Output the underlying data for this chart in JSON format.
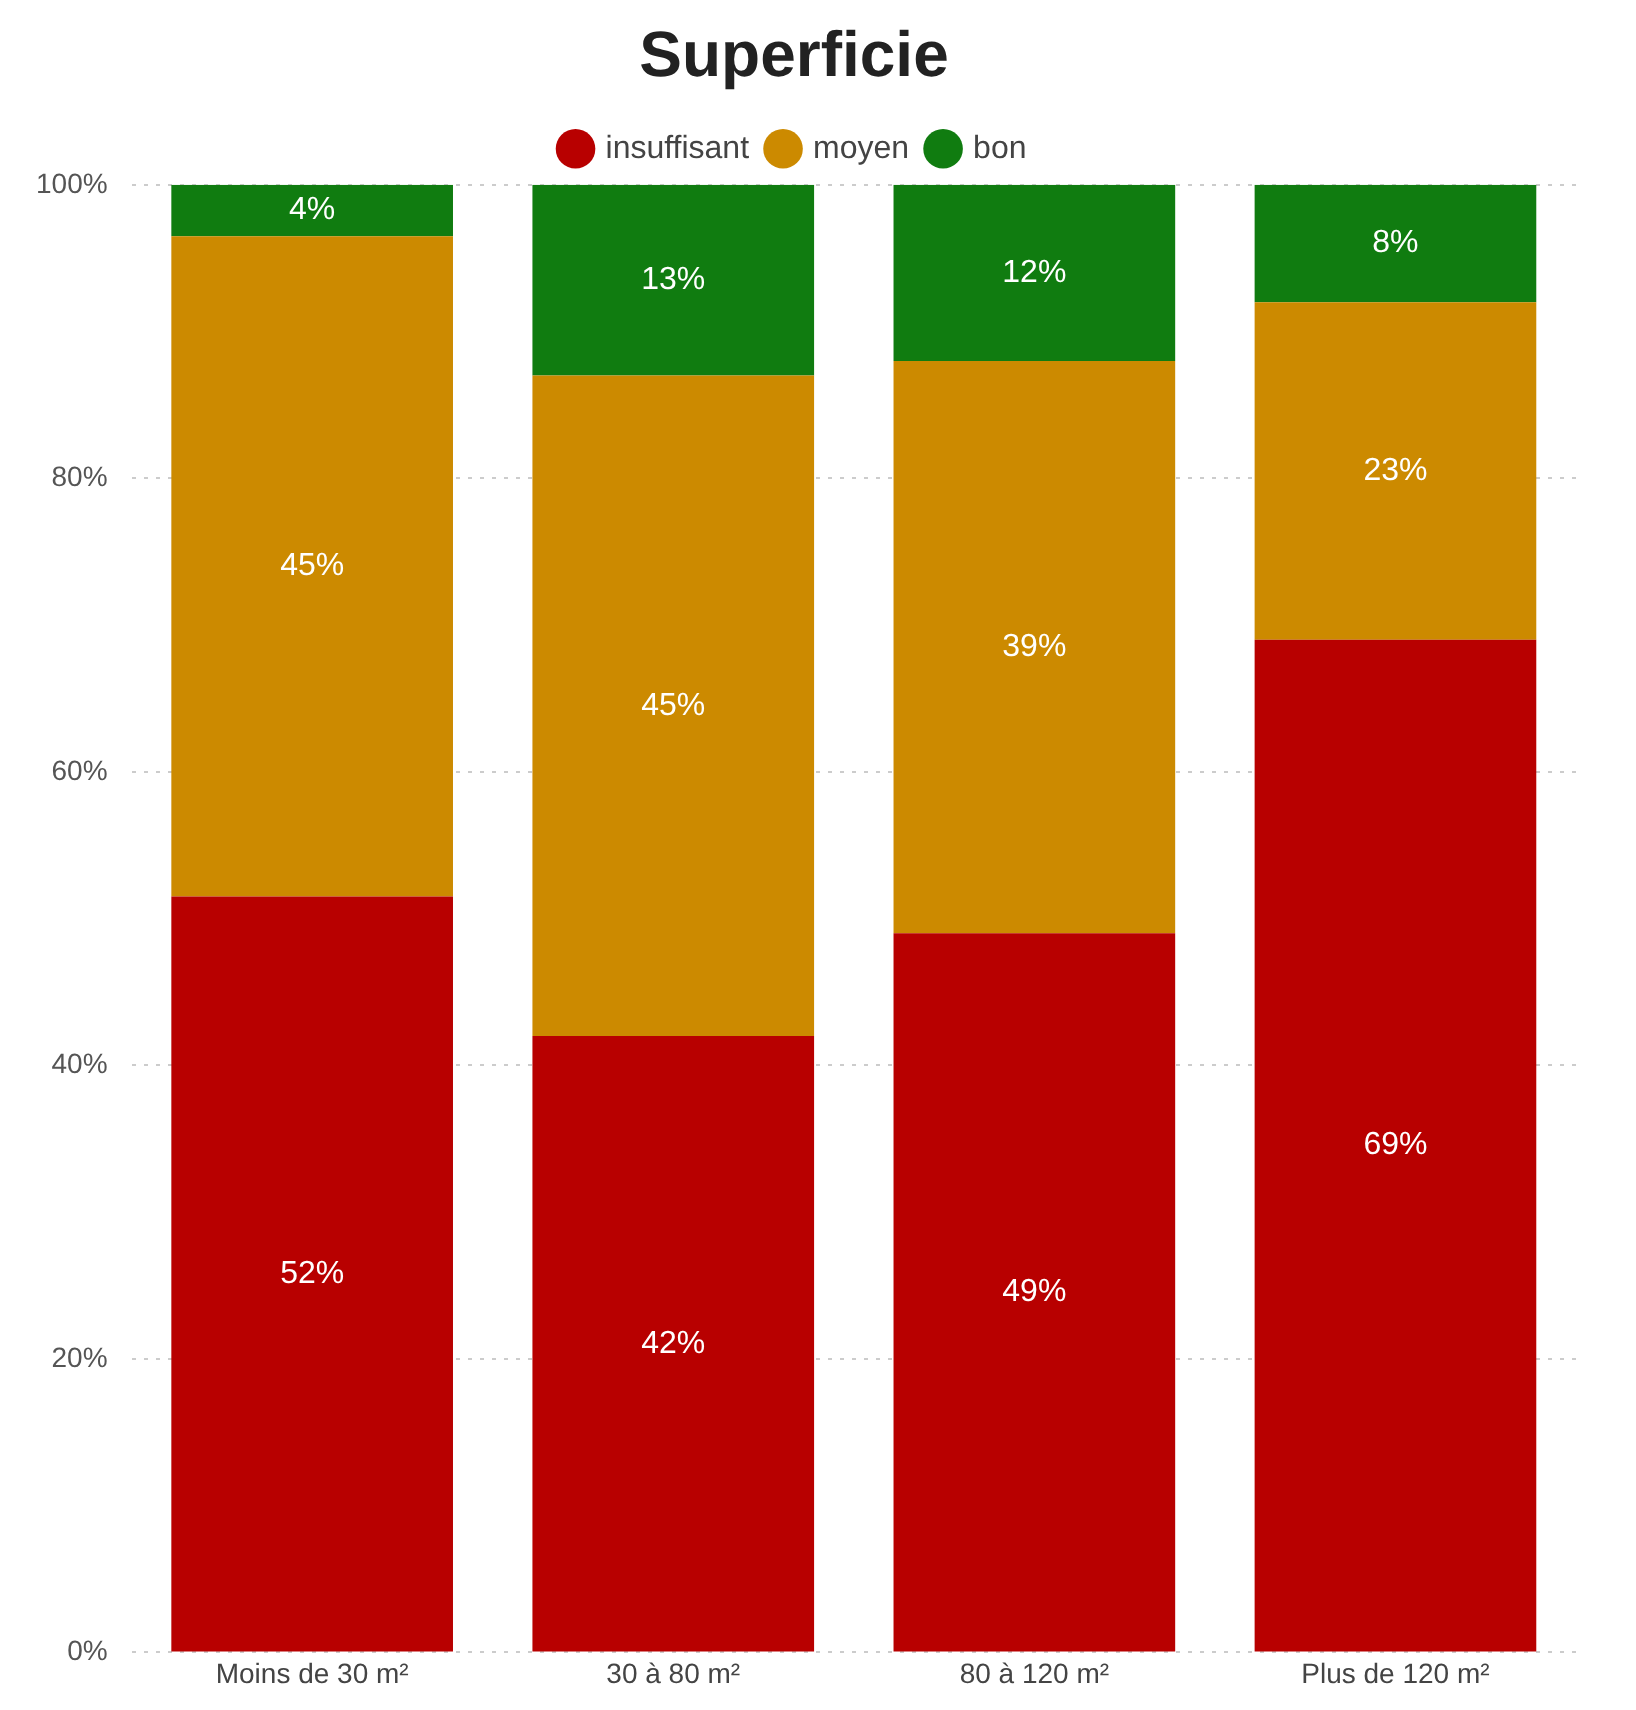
{
  "chart_data": {
    "type": "bar",
    "title": "Superficie",
    "stacked": true,
    "legend": "top",
    "grid": "y",
    "marker": "circle",
    "categories": [
      "Moins de 30 m²",
      "30 à 80 m²",
      "80 à 120 m²",
      "Plus de 120 m²"
    ],
    "ylim": [
      0,
      100
    ],
    "yticks": [
      {
        "value": 0,
        "label": "0%"
      },
      {
        "value": 20,
        "label": "20%"
      },
      {
        "value": 40,
        "label": "40%"
      },
      {
        "value": 60,
        "label": "60%"
      },
      {
        "value": 80,
        "label": "80%"
      },
      {
        "value": 100,
        "label": "100%"
      }
    ],
    "series": [
      {
        "name": "insuffisant",
        "color": "#b80000",
        "values": [
          51.5,
          42,
          49,
          69
        ],
        "value_labels": [
          "52%",
          "42%",
          "49%",
          "69%"
        ]
      },
      {
        "name": "moyen",
        "color": "#cc8a00",
        "values": [
          45,
          45,
          39,
          23
        ],
        "value_labels": [
          "45%",
          "45%",
          "39%",
          "23%"
        ]
      },
      {
        "name": "bon",
        "color": "#107c10",
        "values": [
          3.5,
          13,
          12,
          8
        ],
        "value_labels": [
          "4%",
          "13%",
          "12%",
          "8%"
        ]
      }
    ]
  }
}
